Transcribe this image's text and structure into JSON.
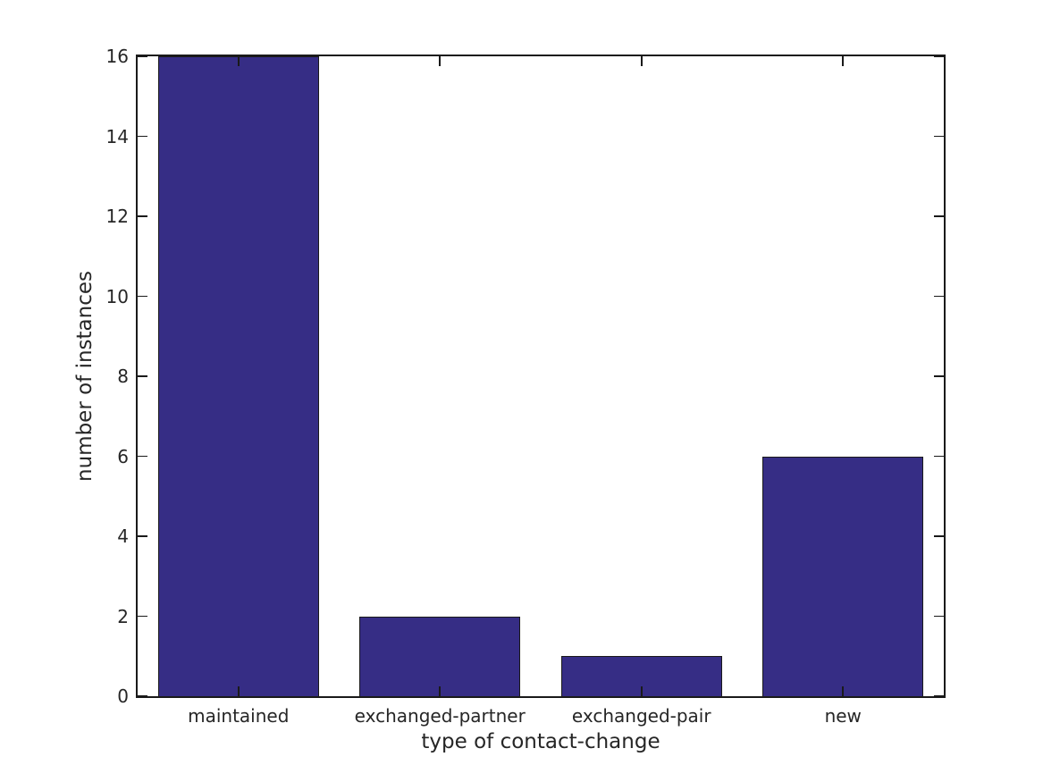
{
  "chart_data": {
    "type": "bar",
    "title": "",
    "categories": [
      "maintained",
      "exchanged-partner",
      "exchanged-pair",
      "new"
    ],
    "values": [
      16,
      2,
      1,
      6
    ],
    "xlabel": "type of contact-change",
    "ylabel": "number of instances",
    "ylim": [
      0,
      16
    ],
    "yticks": [
      0,
      2,
      4,
      6,
      8,
      10,
      12,
      14,
      16
    ],
    "bar_width_fraction": 0.8,
    "grid": false,
    "legend": "none",
    "tick_direction": "in",
    "colors": {
      "bar_fill": "#362D85",
      "bar_edge": "#1A1A1A",
      "axis": "#1A1A1A",
      "text": "#262626",
      "background": "#FFFFFF"
    }
  }
}
